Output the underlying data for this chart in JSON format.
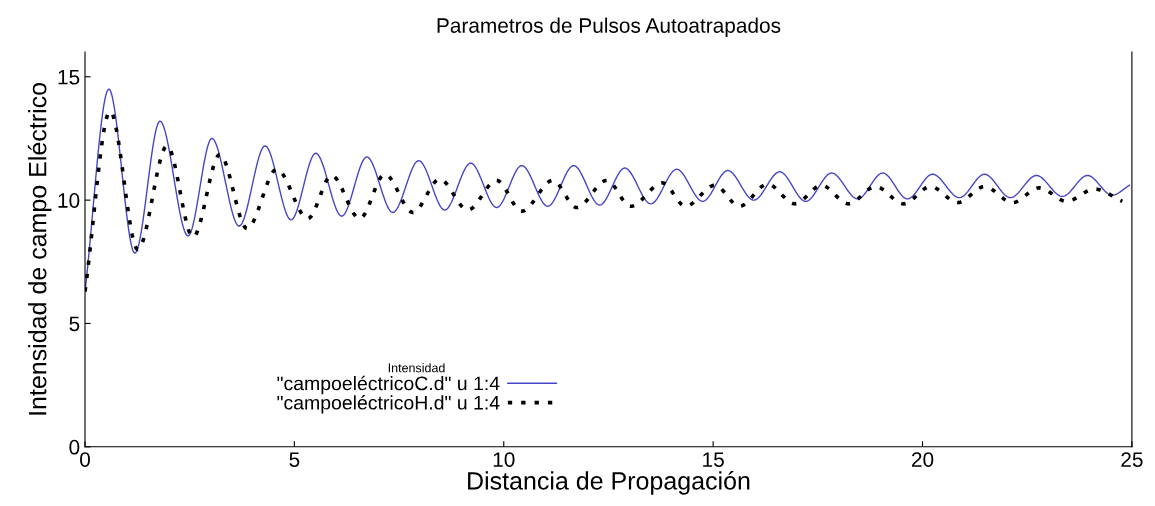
{
  "chart_data": {
    "type": "line",
    "title": "Parametros de Pulsos Autoatrapados",
    "xlabel": "Distancia de Propagación",
    "ylabel": "Intensidad de campo Eléctrico",
    "legend_title": "Intensidad",
    "legend": "bottom left",
    "grid": false,
    "marker": "none",
    "xlim": [
      0,
      25
    ],
    "xticks": [
      0,
      5,
      10,
      15,
      20,
      25
    ],
    "ylim": [
      0,
      16
    ],
    "yticks": [
      0,
      5,
      10,
      15
    ],
    "series": [
      {
        "name": "\"campoeléctricoC.d\" u 1:4",
        "color": "#4545c8",
        "line_style": "solid",
        "x": [
          0,
          0.57,
          1.19,
          1.79,
          2.46,
          3.03,
          3.68,
          4.3,
          4.92,
          5.51,
          6.13,
          6.73,
          7.35,
          7.97,
          8.59,
          9.21,
          9.83,
          10.43,
          11.05,
          11.67,
          12.29,
          12.89,
          13.51,
          14.13,
          14.75,
          15.35,
          15.97,
          16.59,
          17.21,
          17.83,
          18.45,
          19.05,
          19.64,
          20.24,
          20.88,
          21.48,
          22.1,
          22.72,
          23.34,
          23.94,
          24.53,
          24.94
        ],
        "values": [
          6.3,
          14.5,
          7.85,
          13.2,
          8.55,
          12.5,
          8.95,
          12.2,
          9.2,
          11.9,
          9.35,
          11.75,
          9.5,
          11.6,
          9.6,
          11.5,
          9.7,
          11.4,
          9.75,
          11.4,
          9.8,
          11.3,
          9.85,
          11.25,
          9.95,
          11.2,
          10.0,
          11.15,
          9.95,
          11.1,
          10.05,
          11.1,
          10.05,
          11.05,
          10.1,
          11.05,
          10.1,
          11.0,
          10.15,
          11.0,
          10.2,
          10.6
        ]
      },
      {
        "name": "\"campoeléctricoH.d\" u 1:4",
        "color": "#000000",
        "line_style": "dotted",
        "x": [
          0,
          0.6,
          1.26,
          1.96,
          2.58,
          3.22,
          3.87,
          4.58,
          5.32,
          5.89,
          6.56,
          7.16,
          7.83,
          8.47,
          9.14,
          9.83,
          10.43,
          11.17,
          11.74,
          12.46,
          13.03,
          13.79,
          14.34,
          15.04,
          15.63,
          16.3,
          16.95,
          17.59,
          18.23,
          18.88,
          19.55,
          20.19,
          20.84,
          21.48,
          22.15,
          22.79,
          23.44,
          24.11,
          24.77
        ],
        "values": [
          6.3,
          13.6,
          8.0,
          12.2,
          8.5,
          11.85,
          8.85,
          11.25,
          9.25,
          11.0,
          9.25,
          11.05,
          9.5,
          10.85,
          9.6,
          10.8,
          9.55,
          10.8,
          9.7,
          10.8,
          9.75,
          10.7,
          9.75,
          10.6,
          9.75,
          10.65,
          9.85,
          10.6,
          9.85,
          10.55,
          9.85,
          10.55,
          9.9,
          10.55,
          9.9,
          10.5,
          9.95,
          10.45,
          9.95
        ]
      }
    ]
  }
}
